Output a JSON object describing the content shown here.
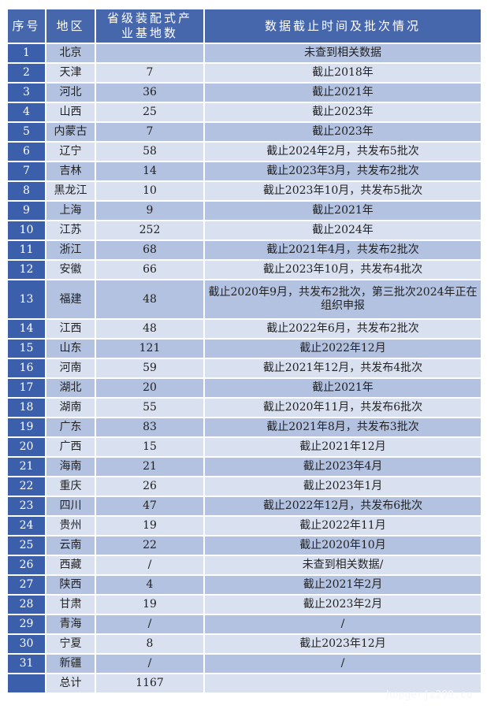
{
  "headers": {
    "index": "序号",
    "region": "地区",
    "count": "省级装配式产业基地数",
    "status": "数据截止时间及批次情况"
  },
  "rows": [
    {
      "index": "1",
      "region": "北京",
      "count": "",
      "status": "未查到相关数据"
    },
    {
      "index": "2",
      "region": "天津",
      "count": "7",
      "status": "截止2018年"
    },
    {
      "index": "3",
      "region": "河北",
      "count": "36",
      "status": "截止2021年"
    },
    {
      "index": "4",
      "region": "山西",
      "count": "25",
      "status": "截止2023年"
    },
    {
      "index": "5",
      "region": "内蒙古",
      "count": "7",
      "status": "截止2023年"
    },
    {
      "index": "6",
      "region": "辽宁",
      "count": "58",
      "status": "截止2024年2月，共发布5批次"
    },
    {
      "index": "7",
      "region": "吉林",
      "count": "14",
      "status": "截止2023年3月，共发布2批次"
    },
    {
      "index": "8",
      "region": "黑龙江",
      "count": "10",
      "status": "截止2023年10月，共发布5批次"
    },
    {
      "index": "9",
      "region": "上海",
      "count": "9",
      "status": "截止2021年"
    },
    {
      "index": "10",
      "region": "江苏",
      "count": "252",
      "status": "截止2024年"
    },
    {
      "index": "11",
      "region": "浙江",
      "count": "68",
      "status": "截止2021年4月，共发布2批次"
    },
    {
      "index": "12",
      "region": "安徽",
      "count": "66",
      "status": "截止2023年10月，共发布4批次"
    },
    {
      "index": "13",
      "region": "福建",
      "count": "48",
      "status": "截止2020年9月，共发布2批次，第三批次2024年正在组织申报"
    },
    {
      "index": "14",
      "region": "江西",
      "count": "48",
      "status": "截止2022年6月，共发布2批次"
    },
    {
      "index": "15",
      "region": "山东",
      "count": "121",
      "status": "截止2022年12月"
    },
    {
      "index": "16",
      "region": "河南",
      "count": "59",
      "status": "截止2021年12月，共发布4批次"
    },
    {
      "index": "17",
      "region": "湖北",
      "count": "20",
      "status": "截止2021年"
    },
    {
      "index": "18",
      "region": "湖南",
      "count": "55",
      "status": "截止2020年11月，共发布6批次"
    },
    {
      "index": "19",
      "region": "广东",
      "count": "83",
      "status": "截止2021年8月，共发布3批次"
    },
    {
      "index": "20",
      "region": "广西",
      "count": "15",
      "status": "截止2021年12月"
    },
    {
      "index": "21",
      "region": "海南",
      "count": "21",
      "status": "截止2023年4月"
    },
    {
      "index": "22",
      "region": "重庆",
      "count": "26",
      "status": "截止2023年1月"
    },
    {
      "index": "23",
      "region": "四川",
      "count": "47",
      "status": "截止2022年12月，共发布6批次"
    },
    {
      "index": "24",
      "region": "贵州",
      "count": "19",
      "status": "截止2022年11月"
    },
    {
      "index": "25",
      "region": "云南",
      "count": "22",
      "status": "截止2020年10月"
    },
    {
      "index": "26",
      "region": "西藏",
      "count": "/",
      "status": "未查到相关数据/"
    },
    {
      "index": "27",
      "region": "陕西",
      "count": "4",
      "status": "截止2021年2月"
    },
    {
      "index": "28",
      "region": "甘肃",
      "count": "19",
      "status": "截止2023年2月"
    },
    {
      "index": "29",
      "region": "青海",
      "count": "/",
      "status": "/"
    },
    {
      "index": "30",
      "region": "宁夏",
      "count": "8",
      "status": "截止2023年12月"
    },
    {
      "index": "31",
      "region": "新疆",
      "count": "/",
      "status": "/"
    }
  ],
  "total": {
    "index": "",
    "region": "总计",
    "count": "1167",
    "status": ""
  },
  "watermark": "hongerjz299.co",
  "colors": {
    "header": "#4767ad",
    "index_cell": "#3c5fab",
    "row_odd": "#b3c2e0",
    "row_even": "#d9e1f1"
  }
}
